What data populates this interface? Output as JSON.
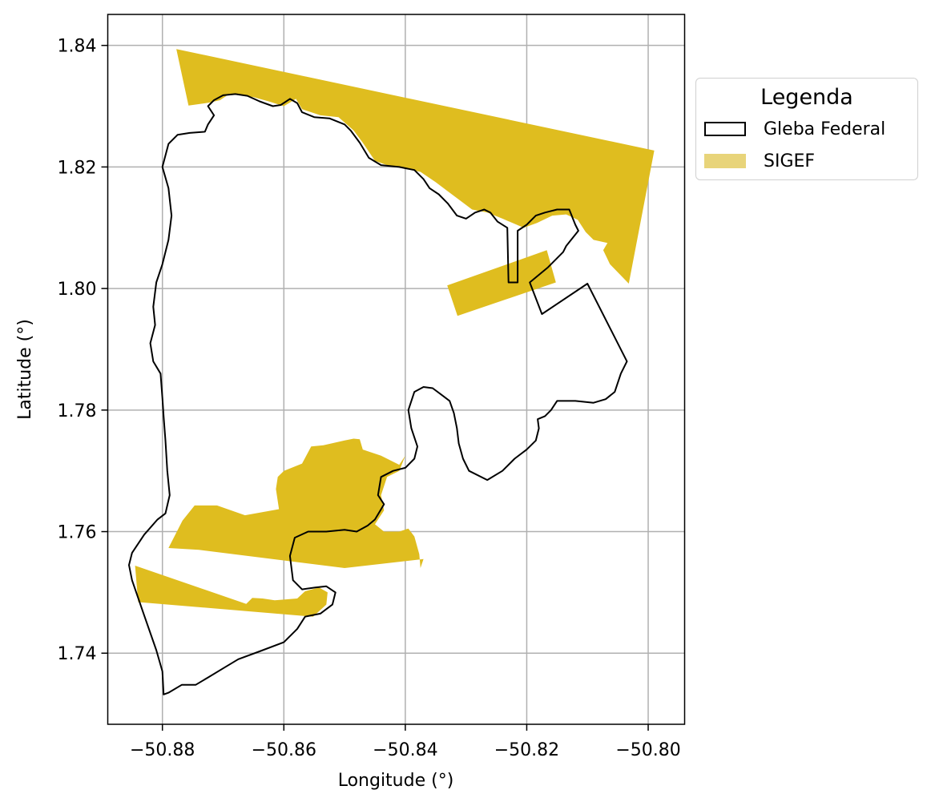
{
  "chart_data": {
    "type": "map",
    "xlabel": "Longitude (°)",
    "ylabel": "Latitude (°)",
    "xlim": [
      -50.889,
      -50.794
    ],
    "ylim": [
      1.7283,
      1.8451
    ],
    "grid": true,
    "x_ticks": [
      {
        "value": -50.88,
        "label": "−50.88"
      },
      {
        "value": -50.86,
        "label": "−50.86"
      },
      {
        "value": -50.84,
        "label": "−50.84"
      },
      {
        "value": -50.82,
        "label": "−50.82"
      },
      {
        "value": -50.8,
        "label": "−50.80"
      }
    ],
    "y_ticks": [
      {
        "value": 1.74,
        "label": "1.74"
      },
      {
        "value": 1.76,
        "label": "1.76"
      },
      {
        "value": 1.78,
        "label": "1.78"
      },
      {
        "value": 1.8,
        "label": "1.80"
      },
      {
        "value": 1.82,
        "label": "1.82"
      },
      {
        "value": 1.84,
        "label": "1.84"
      }
    ],
    "legend": {
      "title": "Legenda",
      "placement": "outside-right-top",
      "entries": [
        {
          "label": "Gleba Federal",
          "style": "outline",
          "color": "#000000"
        },
        {
          "label": "SIGEF",
          "style": "fill",
          "color": "#e8d47a"
        }
      ]
    },
    "sigef_color": "#dfbd1f",
    "sigef_polygons": [
      [
        [
          -50.8777,
          1.8394
        ],
        [
          -50.799,
          1.8227
        ],
        [
          -50.8032,
          1.8008
        ],
        [
          -50.8063,
          1.804
        ],
        [
          -50.8074,
          1.8063
        ],
        [
          -50.8067,
          1.8075
        ],
        [
          -50.809,
          1.808
        ],
        [
          -50.8103,
          1.8093
        ],
        [
          -50.8116,
          1.8113
        ],
        [
          -50.8135,
          1.8122
        ],
        [
          -50.8158,
          1.812
        ],
        [
          -50.8183,
          1.8108
        ],
        [
          -50.8205,
          1.81
        ],
        [
          -50.824,
          1.8115
        ],
        [
          -50.8265,
          1.8125
        ],
        [
          -50.829,
          1.813
        ],
        [
          -50.831,
          1.8145
        ],
        [
          -50.833,
          1.816
        ],
        [
          -50.835,
          1.8175
        ],
        [
          -50.8375,
          1.8192
        ],
        [
          -50.8405,
          1.8198
        ],
        [
          -50.843,
          1.8203
        ],
        [
          -50.845,
          1.821
        ],
        [
          -50.847,
          1.824
        ],
        [
          -50.8485,
          1.826
        ],
        [
          -50.851,
          1.8282
        ],
        [
          -50.854,
          1.8285
        ],
        [
          -50.857,
          1.8295
        ],
        [
          -50.858,
          1.8312
        ],
        [
          -50.86,
          1.83
        ],
        [
          -50.8625,
          1.8308
        ],
        [
          -50.865,
          1.8315
        ],
        [
          -50.867,
          1.8318
        ],
        [
          -50.869,
          1.832
        ],
        [
          -50.8705,
          1.831
        ],
        [
          -50.8722,
          1.8306
        ],
        [
          -50.8757,
          1.8301
        ]
      ],
      [
        [
          -50.8331,
          1.8005
        ],
        [
          -50.8167,
          1.8063
        ],
        [
          -50.8152,
          1.801
        ],
        [
          -50.8314,
          1.7955
        ]
      ],
      [
        [
          -50.8485,
          1.7753
        ],
        [
          -50.8475,
          1.7752
        ],
        [
          -50.847,
          1.7735
        ],
        [
          -50.844,
          1.7725
        ],
        [
          -50.841,
          1.771
        ],
        [
          -50.84,
          1.7725
        ],
        [
          -50.841,
          1.77
        ],
        [
          -50.843,
          1.769
        ],
        [
          -50.844,
          1.766
        ],
        [
          -50.8435,
          1.7635
        ],
        [
          -50.845,
          1.7612
        ],
        [
          -50.8435,
          1.76
        ],
        [
          -50.841,
          1.76
        ],
        [
          -50.8395,
          1.7605
        ],
        [
          -50.8385,
          1.7592
        ],
        [
          -50.8377,
          1.7563
        ],
        [
          -50.8375,
          1.754
        ],
        [
          -50.837,
          1.7555
        ],
        [
          -50.85,
          1.754
        ],
        [
          -50.874,
          1.757
        ],
        [
          -50.879,
          1.7573
        ],
        [
          -50.8767,
          1.7618
        ],
        [
          -50.8747,
          1.7643
        ],
        [
          -50.871,
          1.7643
        ],
        [
          -50.8664,
          1.7627
        ],
        [
          -50.8608,
          1.7637
        ],
        [
          -50.8613,
          1.767
        ],
        [
          -50.861,
          1.769
        ],
        [
          -50.86,
          1.77
        ],
        [
          -50.857,
          1.7712
        ],
        [
          -50.8555,
          1.774
        ],
        [
          -50.8535,
          1.7742
        ],
        [
          -50.85,
          1.775
        ]
      ],
      [
        [
          -50.8845,
          1.7544
        ],
        [
          -50.8662,
          1.7481
        ],
        [
          -50.8652,
          1.7491
        ],
        [
          -50.8635,
          1.749
        ],
        [
          -50.8615,
          1.7487
        ],
        [
          -50.8578,
          1.749
        ],
        [
          -50.8565,
          1.7502
        ],
        [
          -50.8542,
          1.7508
        ],
        [
          -50.8528,
          1.75
        ],
        [
          -50.853,
          1.748
        ],
        [
          -50.8552,
          1.746
        ],
        [
          -50.884,
          1.7484
        ]
      ]
    ],
    "gleba_outline": [
      [
        -50.8798,
        1.7332
      ],
      [
        -50.879,
        1.7335
      ],
      [
        -50.8768,
        1.7348
      ],
      [
        -50.8745,
        1.7348
      ],
      [
        -50.8725,
        1.736
      ],
      [
        -50.87,
        1.7375
      ],
      [
        -50.8675,
        1.739
      ],
      [
        -50.864,
        1.7403
      ],
      [
        -50.86,
        1.7418
      ],
      [
        -50.8578,
        1.744
      ],
      [
        -50.8565,
        1.746
      ],
      [
        -50.854,
        1.7465
      ],
      [
        -50.852,
        1.748
      ],
      [
        -50.8515,
        1.75
      ],
      [
        -50.853,
        1.751
      ],
      [
        -50.8548,
        1.7508
      ],
      [
        -50.857,
        1.7505
      ],
      [
        -50.8585,
        1.752
      ],
      [
        -50.859,
        1.756
      ],
      [
        -50.8582,
        1.759
      ],
      [
        -50.856,
        1.76
      ],
      [
        -50.853,
        1.76
      ],
      [
        -50.85,
        1.7603
      ],
      [
        -50.848,
        1.76
      ],
      [
        -50.8462,
        1.761
      ],
      [
        -50.845,
        1.762
      ],
      [
        -50.8435,
        1.7645
      ],
      [
        -50.8445,
        1.766
      ],
      [
        -50.844,
        1.769
      ],
      [
        -50.842,
        1.77
      ],
      [
        -50.84,
        1.7705
      ],
      [
        -50.8385,
        1.772
      ],
      [
        -50.838,
        1.774
      ],
      [
        -50.839,
        1.777
      ],
      [
        -50.8395,
        1.78
      ],
      [
        -50.8385,
        1.783
      ],
      [
        -50.837,
        1.7838
      ],
      [
        -50.8355,
        1.7836
      ],
      [
        -50.834,
        1.7825
      ],
      [
        -50.8327,
        1.7815
      ],
      [
        -50.832,
        1.7795
      ],
      [
        -50.8315,
        1.777
      ],
      [
        -50.8312,
        1.7745
      ],
      [
        -50.8305,
        1.772
      ],
      [
        -50.8295,
        1.77
      ],
      [
        -50.8265,
        1.7685
      ],
      [
        -50.824,
        1.77
      ],
      [
        -50.822,
        1.772
      ],
      [
        -50.82,
        1.7735
      ],
      [
        -50.8185,
        1.775
      ],
      [
        -50.818,
        1.777
      ],
      [
        -50.8182,
        1.7785
      ],
      [
        -50.817,
        1.779
      ],
      [
        -50.816,
        1.78
      ],
      [
        -50.815,
        1.7815
      ],
      [
        -50.812,
        1.7815
      ],
      [
        -50.809,
        1.7812
      ],
      [
        -50.807,
        1.7818
      ],
      [
        -50.8055,
        1.783
      ],
      [
        -50.8045,
        1.786
      ],
      [
        -50.8035,
        1.788
      ],
      [
        -50.81,
        1.8008
      ],
      [
        -50.8175,
        1.7958
      ],
      [
        -50.8195,
        1.801
      ],
      [
        -50.8165,
        1.8035
      ],
      [
        -50.814,
        1.806
      ],
      [
        -50.8135,
        1.807
      ],
      [
        -50.8115,
        1.8095
      ],
      [
        -50.812,
        1.8105
      ],
      [
        -50.813,
        1.813
      ],
      [
        -50.815,
        1.813
      ],
      [
        -50.817,
        1.8125
      ],
      [
        -50.8185,
        1.812
      ],
      [
        -50.82,
        1.8105
      ],
      [
        -50.8215,
        1.8095
      ],
      [
        -50.8215,
        1.801
      ],
      [
        -50.823,
        1.801
      ],
      [
        -50.8232,
        1.81
      ],
      [
        -50.8248,
        1.811
      ],
      [
        -50.826,
        1.8125
      ],
      [
        -50.827,
        1.813
      ],
      [
        -50.8285,
        1.8125
      ],
      [
        -50.83,
        1.8115
      ],
      [
        -50.8315,
        1.812
      ],
      [
        -50.833,
        1.814
      ],
      [
        -50.8345,
        1.8155
      ],
      [
        -50.836,
        1.8165
      ],
      [
        -50.837,
        1.818
      ],
      [
        -50.8385,
        1.8195
      ],
      [
        -50.841,
        1.82
      ],
      [
        -50.844,
        1.8203
      ],
      [
        -50.846,
        1.8215
      ],
      [
        -50.8475,
        1.824
      ],
      [
        -50.849,
        1.826
      ],
      [
        -50.85,
        1.827
      ],
      [
        -50.8525,
        1.828
      ],
      [
        -50.855,
        1.8282
      ],
      [
        -50.857,
        1.829
      ],
      [
        -50.8578,
        1.8305
      ],
      [
        -50.859,
        1.8312
      ],
      [
        -50.8605,
        1.8302
      ],
      [
        -50.8618,
        1.83
      ],
      [
        -50.864,
        1.8308
      ],
      [
        -50.866,
        1.8317
      ],
      [
        -50.868,
        1.832
      ],
      [
        -50.87,
        1.8318
      ],
      [
        -50.8715,
        1.831
      ],
      [
        -50.8725,
        1.83
      ],
      [
        -50.8715,
        1.8285
      ],
      [
        -50.8725,
        1.827
      ],
      [
        -50.873,
        1.8258
      ],
      [
        -50.8755,
        1.8256
      ],
      [
        -50.8775,
        1.8253
      ],
      [
        -50.879,
        1.8238
      ],
      [
        -50.88,
        1.82
      ],
      [
        -50.879,
        1.8165
      ],
      [
        -50.8785,
        1.812
      ],
      [
        -50.879,
        1.808
      ],
      [
        -50.88,
        1.804
      ],
      [
        -50.881,
        1.801
      ],
      [
        -50.8815,
        1.797
      ],
      [
        -50.8812,
        1.794
      ],
      [
        -50.882,
        1.791
      ],
      [
        -50.8815,
        1.788
      ],
      [
        -50.8803,
        1.786
      ],
      [
        -50.88,
        1.782
      ],
      [
        -50.8798,
        1.779
      ],
      [
        -50.8795,
        1.775
      ],
      [
        -50.8792,
        1.77
      ],
      [
        -50.8788,
        1.766
      ],
      [
        -50.8795,
        1.763
      ],
      [
        -50.8808,
        1.762
      ],
      [
        -50.883,
        1.7595
      ],
      [
        -50.885,
        1.7565
      ],
      [
        -50.8855,
        1.7545
      ],
      [
        -50.885,
        1.752
      ],
      [
        -50.883,
        1.7462
      ],
      [
        -50.881,
        1.7405
      ],
      [
        -50.88,
        1.737
      ]
    ]
  }
}
